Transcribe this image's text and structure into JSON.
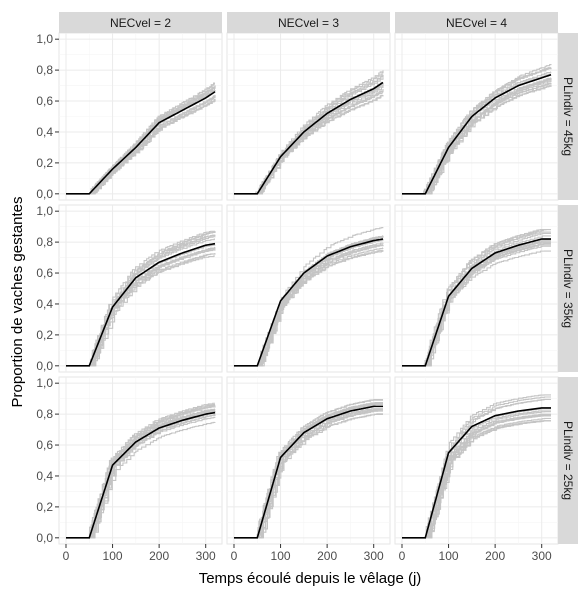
{
  "chart_data": {
    "type": "line",
    "title": "",
    "xlabel": "Temps écoulé depuis le vêlage (j)",
    "ylabel": "Proportion de vaches gestantes",
    "xlim": [
      -15,
      335
    ],
    "ylim": [
      -0.04,
      1.04
    ],
    "x_ticks": [
      0,
      100,
      200,
      300
    ],
    "x_tick_labels": [
      "0",
      "100",
      "200",
      "300"
    ],
    "y_ticks": [
      0,
      0.2,
      0.4,
      0.6,
      0.8,
      1.0
    ],
    "y_tick_labels": [
      "0,0",
      "0,2",
      "0,4",
      "0,6",
      "0,8",
      "1,0"
    ],
    "grid": true,
    "colors": {
      "simulations": "#c4c4c4",
      "mean": "#000000",
      "strip": "#d9d9d9"
    },
    "facet_columns": [
      "NECvel = 2",
      "NECvel = 3",
      "NECvel = 4"
    ],
    "facet_rows": [
      "PLindiv = 45kg",
      "PLindiv = 35kg",
      "PLindiv = 25kg"
    ],
    "panels": [
      {
        "row": 0,
        "col": 0,
        "mean": [
          [
            0,
            0
          ],
          [
            50,
            0
          ],
          [
            100,
            0.16
          ],
          [
            150,
            0.3
          ],
          [
            200,
            0.46
          ],
          [
            250,
            0.54
          ],
          [
            300,
            0.62
          ],
          [
            320,
            0.66
          ]
        ],
        "spread": 0.06
      },
      {
        "row": 0,
        "col": 1,
        "mean": [
          [
            0,
            0
          ],
          [
            50,
            0
          ],
          [
            100,
            0.24
          ],
          [
            150,
            0.4
          ],
          [
            200,
            0.52
          ],
          [
            250,
            0.61
          ],
          [
            300,
            0.68
          ],
          [
            320,
            0.72
          ]
        ],
        "spread": 0.08
      },
      {
        "row": 0,
        "col": 2,
        "mean": [
          [
            0,
            0
          ],
          [
            50,
            0
          ],
          [
            100,
            0.3
          ],
          [
            150,
            0.5
          ],
          [
            200,
            0.62
          ],
          [
            250,
            0.7
          ],
          [
            300,
            0.75
          ],
          [
            320,
            0.77
          ]
        ],
        "spread": 0.07
      },
      {
        "row": 1,
        "col": 0,
        "mean": [
          [
            0,
            0
          ],
          [
            50,
            0
          ],
          [
            100,
            0.38
          ],
          [
            150,
            0.57
          ],
          [
            200,
            0.67
          ],
          [
            250,
            0.73
          ],
          [
            300,
            0.78
          ],
          [
            320,
            0.79
          ]
        ],
        "spread": 0.07
      },
      {
        "row": 1,
        "col": 1,
        "mean": [
          [
            0,
            0
          ],
          [
            50,
            0
          ],
          [
            100,
            0.42
          ],
          [
            150,
            0.6
          ],
          [
            200,
            0.71
          ],
          [
            250,
            0.77
          ],
          [
            300,
            0.81
          ],
          [
            320,
            0.82
          ]
        ],
        "spread": 0.07
      },
      {
        "row": 1,
        "col": 2,
        "mean": [
          [
            0,
            0
          ],
          [
            50,
            0
          ],
          [
            100,
            0.45
          ],
          [
            150,
            0.63
          ],
          [
            200,
            0.73
          ],
          [
            250,
            0.78
          ],
          [
            300,
            0.82
          ],
          [
            320,
            0.82
          ]
        ],
        "spread": 0.07
      },
      {
        "row": 2,
        "col": 0,
        "mean": [
          [
            0,
            0
          ],
          [
            50,
            0
          ],
          [
            100,
            0.47
          ],
          [
            150,
            0.62
          ],
          [
            200,
            0.71
          ],
          [
            250,
            0.76
          ],
          [
            300,
            0.8
          ],
          [
            320,
            0.81
          ]
        ],
        "spread": 0.05
      },
      {
        "row": 2,
        "col": 1,
        "mean": [
          [
            0,
            0
          ],
          [
            50,
            0
          ],
          [
            100,
            0.52
          ],
          [
            150,
            0.68
          ],
          [
            200,
            0.77
          ],
          [
            250,
            0.82
          ],
          [
            300,
            0.85
          ],
          [
            320,
            0.85
          ]
        ],
        "spread": 0.05
      },
      {
        "row": 2,
        "col": 2,
        "mean": [
          [
            0,
            0
          ],
          [
            50,
            0
          ],
          [
            100,
            0.55
          ],
          [
            150,
            0.72
          ],
          [
            200,
            0.79
          ],
          [
            250,
            0.82
          ],
          [
            300,
            0.84
          ],
          [
            320,
            0.84
          ]
        ],
        "spread": 0.07
      }
    ],
    "n_simulations": 16
  }
}
